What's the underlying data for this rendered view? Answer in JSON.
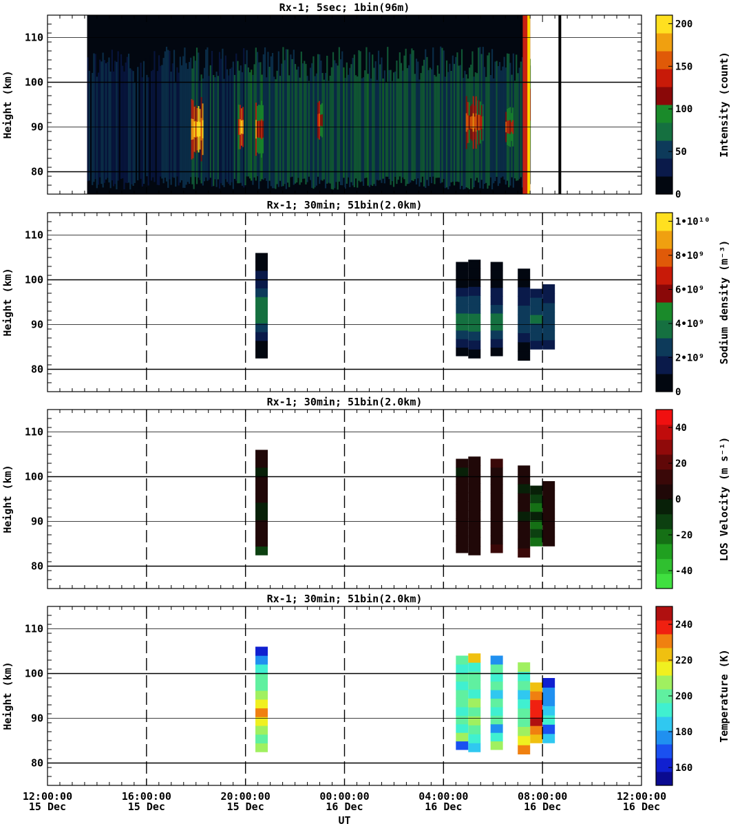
{
  "chart_data": [
    {
      "type": "heatmap",
      "title": "Rx-1;  5sec; 1bin(96m)",
      "ylabel": "Height (km)",
      "ylim": [
        75,
        115
      ],
      "yticks": [
        "80",
        "90",
        "100",
        "110"
      ],
      "xlim_hours": [
        0,
        24
      ],
      "colorbar": {
        "label": "Intensity (count)",
        "range": [
          0,
          210
        ],
        "ticks": [
          {
            "v": 0,
            "t": "0"
          },
          {
            "v": 50,
            "t": "50"
          },
          {
            "v": 100,
            "t": "100"
          },
          {
            "v": 150,
            "t": "150"
          },
          {
            "v": 200,
            "t": "200"
          }
        ],
        "colors": [
          "#020710",
          "#0a1a4a",
          "#0d3a5a",
          "#157040",
          "#1a8a2a",
          "#8a0808",
          "#c81a08",
          "#e05a08",
          "#f0a010",
          "#ffe020"
        ]
      },
      "data_extent_hours": [
        1.6,
        19.5
      ],
      "layers": [
        {
          "h0": 12.6,
          "h1": 16.0,
          "color": "#ffd500",
          "level": 200
        },
        {
          "h0": 18.1,
          "h1": 19.2,
          "color": "#d02010",
          "level": 130
        }
      ],
      "layer_regions": [
        {
          "t0": 5.8,
          "t1": 6.3,
          "h0": 82,
          "h1": 97,
          "level": 200
        },
        {
          "t0": 7.7,
          "t1": 7.9,
          "h0": 85,
          "h1": 95,
          "level": 150
        },
        {
          "t0": 8.4,
          "t1": 8.7,
          "h0": 83,
          "h1": 96,
          "level": 150
        },
        {
          "t0": 10.9,
          "t1": 11.1,
          "h0": 87,
          "h1": 96,
          "level": 130
        },
        {
          "t0": 16.9,
          "t1": 17.6,
          "h0": 85,
          "h1": 97,
          "level": 140
        },
        {
          "t0": 18.5,
          "t1": 18.8,
          "h0": 85,
          "h1": 95,
          "level": 120
        },
        {
          "t0": 19.3,
          "t1": 19.5,
          "h0": 80,
          "h1": 110,
          "level": 160
        }
      ]
    },
    {
      "type": "heatmap",
      "title": "Rx-1; 30min; 51bin(2.0km)",
      "ylabel": "Height (km)",
      "ylim": [
        75,
        115
      ],
      "yticks": [
        "80",
        "90",
        "100",
        "110"
      ],
      "xlim_hours": [
        0,
        24
      ],
      "colorbar": {
        "label": "Sodium density (m⁻³)",
        "range": [
          0,
          10500000000.0
        ],
        "ticks": [
          {
            "v": 0,
            "t": "0"
          },
          {
            "v": 2000000000.0,
            "t": "2•10⁹"
          },
          {
            "v": 4000000000.0,
            "t": "4•10⁹"
          },
          {
            "v": 6000000000.0,
            "t": "6•10⁹"
          },
          {
            "v": 8000000000.0,
            "t": "8•10⁹"
          },
          {
            "v": 10000000000.0,
            "t": "1•10¹⁰"
          }
        ],
        "colors": [
          "#020710",
          "#0a1a4a",
          "#0d3a5a",
          "#157040",
          "#1a8a2a",
          "#8a0808",
          "#c81a08",
          "#e05a08",
          "#f0a010",
          "#ffe020"
        ]
      },
      "columns": [
        {
          "t0": 8.4,
          "t1": 8.9,
          "h0": 82.5,
          "h1": 106,
          "values": [
            0.3,
            0.8,
            1.6,
            2.4,
            3.2,
            3.8,
            3.4,
            2.6,
            1.8,
            1.2,
            0.8,
            0.4
          ]
        },
        {
          "t0": 16.5,
          "t1": 17.0,
          "h0": 83,
          "h1": 104,
          "values": [
            0.5,
            1.4,
            2.6,
            3.2,
            3.6,
            3.0,
            2.4,
            1.6,
            1.0,
            0.6,
            0.3
          ]
        },
        {
          "t0": 17.0,
          "t1": 17.5,
          "h0": 82.5,
          "h1": 104.5,
          "values": [
            0.6,
            1.6,
            2.8,
            3.6,
            3.8,
            3.0,
            2.2,
            1.4,
            0.9,
            0.5,
            0.3
          ]
        },
        {
          "t0": 17.9,
          "t1": 18.4,
          "h0": 83,
          "h1": 104,
          "values": [
            0.4,
            1.2,
            2.4,
            3.2,
            3.4,
            2.6,
            1.8,
            1.2,
            0.7,
            0.4,
            0.2
          ]
        },
        {
          "t0": 19.0,
          "t1": 19.5,
          "h0": 82,
          "h1": 102.5,
          "values": [
            0.4,
            1.0,
            1.8,
            2.6,
            3.0,
            2.6,
            1.8,
            1.2,
            0.6,
            0.3
          ]
        },
        {
          "t0": 19.5,
          "t1": 20.0,
          "h0": 84.5,
          "h1": 98,
          "values": [
            1.4,
            2.4,
            3.0,
            3.2,
            2.8,
            2.2,
            1.6
          ]
        },
        {
          "t0": 20.0,
          "t1": 20.5,
          "h0": 84.5,
          "h1": 99,
          "values": [
            1.2,
            2.2,
            2.8,
            3.0,
            2.6,
            2.0,
            1.4
          ]
        }
      ],
      "value_scale": 1000000000.0
    },
    {
      "type": "heatmap",
      "title": "Rx-1; 30min; 51bin(2.0km)",
      "ylabel": "Height (km)",
      "ylim": [
        75,
        115
      ],
      "yticks": [
        "80",
        "90",
        "100",
        "110"
      ],
      "xlim_hours": [
        0,
        24
      ],
      "colorbar": {
        "label": "LOS Velocity (m s⁻¹)",
        "range": [
          -50,
          50
        ],
        "ticks": [
          {
            "v": -40,
            "t": "-40"
          },
          {
            "v": -20,
            "t": "-20"
          },
          {
            "v": 0,
            "t": "0"
          },
          {
            "v": 20,
            "t": "20"
          },
          {
            "v": 40,
            "t": "40"
          }
        ],
        "colors": [
          "#40e040",
          "#30c030",
          "#20a020",
          "#157015",
          "#0c4010",
          "#082008",
          "#200808",
          "#3a0808",
          "#600808",
          "#900a0a",
          "#c00c0c",
          "#f01010"
        ]
      },
      "columns": [
        {
          "t0": 8.4,
          "t1": 8.9,
          "h0": 82.5,
          "h1": 106,
          "values": [
            -10,
            3,
            5,
            6,
            -6,
            -8,
            4,
            6,
            3,
            -4,
            5,
            8
          ]
        },
        {
          "t0": 16.5,
          "t1": 17.0,
          "h0": 83,
          "h1": 104,
          "values": [
            4,
            6,
            5,
            5,
            4,
            5,
            6,
            5,
            4,
            -4,
            3
          ]
        },
        {
          "t0": 17.0,
          "t1": 17.5,
          "h0": 82.5,
          "h1": 104.5,
          "values": [
            8,
            5,
            6,
            5,
            5,
            6,
            5,
            6,
            5,
            4,
            6
          ]
        },
        {
          "t0": 17.9,
          "t1": 18.4,
          "h0": 83,
          "h1": 104,
          "values": [
            10,
            5,
            6,
            6,
            5,
            5,
            6,
            5,
            4,
            3,
            10
          ]
        },
        {
          "t0": 19.0,
          "t1": 19.5,
          "h0": 82,
          "h1": 102.5,
          "values": [
            12,
            6,
            5,
            4,
            -5,
            6,
            5,
            -4,
            4,
            8
          ]
        },
        {
          "t0": 19.5,
          "t1": 20.0,
          "h0": 84.5,
          "h1": 98,
          "values": [
            -22,
            -10,
            -18,
            -8,
            -25,
            -14,
            -6
          ]
        },
        {
          "t0": 20.0,
          "t1": 20.5,
          "h0": 84.5,
          "h1": 99,
          "values": [
            8,
            6,
            5,
            4,
            6,
            5,
            6
          ]
        }
      ]
    },
    {
      "type": "heatmap",
      "title": "Rx-1; 30min; 51bin(2.0km)",
      "ylabel": "Height (km)",
      "ylim": [
        75,
        115
      ],
      "yticks": [
        "80",
        "90",
        "100",
        "110"
      ],
      "xlim_hours": [
        0,
        24
      ],
      "xticks": [
        {
          "h": 0,
          "t1": "12:00:00",
          "t2": "15 Dec"
        },
        {
          "h": 4,
          "t1": "16:00:00",
          "t2": "15 Dec"
        },
        {
          "h": 8,
          "t1": "20:00:00",
          "t2": "15 Dec"
        },
        {
          "h": 12,
          "t1": "00:00:00",
          "t2": "16 Dec"
        },
        {
          "h": 16,
          "t1": "04:00:00",
          "t2": "16 Dec"
        },
        {
          "h": 20,
          "t1": "08:00:00",
          "t2": "16 Dec"
        },
        {
          "h": 24,
          "t1": "12:00:00",
          "t2": "16 Dec"
        }
      ],
      "xlabel": "UT",
      "colorbar": {
        "label": "Temperature (K)",
        "range": [
          150,
          250
        ],
        "ticks": [
          {
            "v": 160,
            "t": "160"
          },
          {
            "v": 180,
            "t": "180"
          },
          {
            "v": 200,
            "t": "200"
          },
          {
            "v": 220,
            "t": "220"
          },
          {
            "v": 240,
            "t": "240"
          }
        ],
        "colors": [
          "#0a0a90",
          "#1020d0",
          "#1a50f0",
          "#2090f0",
          "#30c8f0",
          "#40f0d0",
          "#60f0a0",
          "#a0f060",
          "#f0f020",
          "#f0c010",
          "#f08010",
          "#f02010",
          "#b01010"
        ]
      },
      "columns": [
        {
          "t0": 8.4,
          "t1": 8.9,
          "h0": 82.5,
          "h1": 106,
          "values": [
            208,
            200,
            210,
            218,
            228,
            214,
            208,
            203,
            200,
            190,
            175,
            165
          ]
        },
        {
          "t0": 16.5,
          "t1": 17.0,
          "h0": 83,
          "h1": 104,
          "values": [
            170,
            205,
            195,
            200,
            193,
            198,
            200,
            195,
            200,
            190,
            200
          ]
        },
        {
          "t0": 17.0,
          "t1": 17.5,
          "h0": 82.5,
          "h1": 104.5,
          "values": [
            185,
            195,
            200,
            208,
            198,
            208,
            195,
            200,
            198,
            196,
            225
          ]
        },
        {
          "t0": 17.9,
          "t1": 18.4,
          "h0": 83,
          "h1": 104,
          "values": [
            205,
            190,
            175,
            198,
            190,
            200,
            185,
            200,
            195,
            200,
            178
          ]
        },
        {
          "t0": 19.0,
          "t1": 19.5,
          "h0": 82,
          "h1": 102.5,
          "values": [
            228,
            218,
            208,
            200,
            198,
            190,
            185,
            200,
            190,
            205
          ]
        },
        {
          "t0": 19.5,
          "t1": 20.0,
          "h0": 84.5,
          "h1": 98,
          "values": [
            220,
            230,
            245,
            238,
            235,
            228,
            222
          ]
        },
        {
          "t0": 20.0,
          "t1": 20.5,
          "h0": 84.5,
          "h1": 99,
          "values": [
            182,
            168,
            190,
            185,
            180,
            178,
            160
          ]
        }
      ]
    }
  ]
}
